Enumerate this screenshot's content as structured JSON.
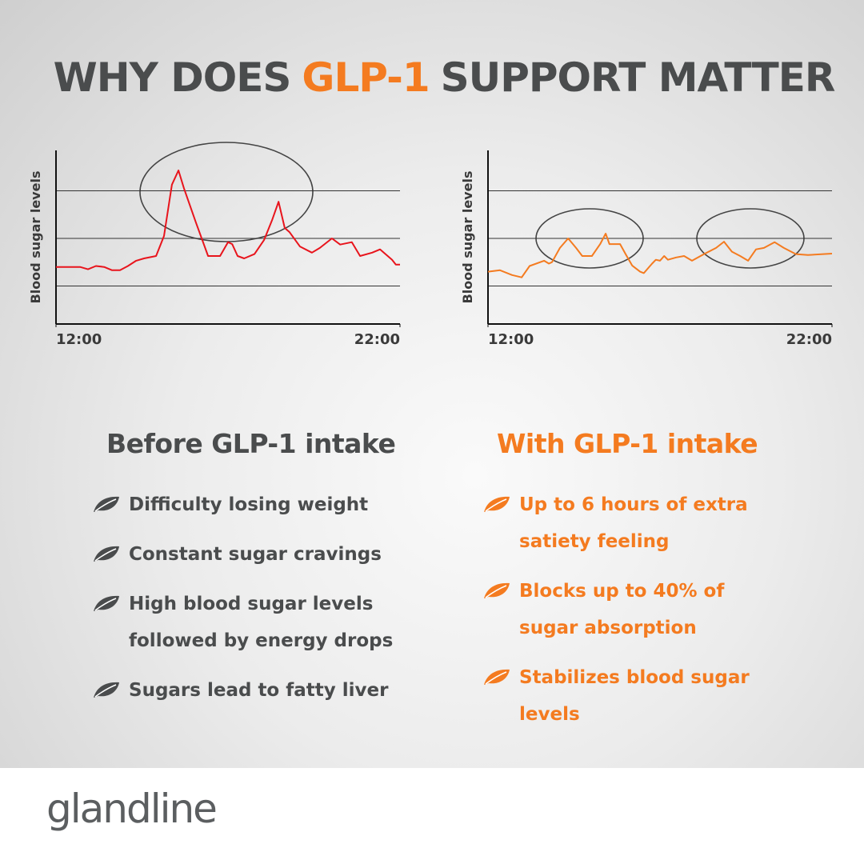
{
  "title_parts": [
    "WHY DOES",
    "GLP-1",
    "SUPPORT MATTER"
  ],
  "chart_data": [
    {
      "type": "line",
      "y_label": "Blood sugar levels",
      "x": [
        12,
        12.7,
        12.93,
        13.16,
        13.4,
        13.63,
        13.86,
        14.09,
        14.33,
        14.56,
        14.91,
        15.14,
        15.37,
        15.56,
        15.72,
        16.07,
        16.42,
        16.77,
        17.0,
        17.12,
        17.28,
        17.47,
        17.77,
        18.05,
        18.28,
        18.47,
        18.65,
        18.79,
        19.09,
        19.44,
        19.67,
        20.02,
        20.26,
        20.6,
        20.84,
        21.19,
        21.42,
        21.77,
        21.88,
        22
      ],
      "series": [
        {
          "color": "#e8141c",
          "values": [
            1.4,
            1.4,
            1.35,
            1.42,
            1.4,
            1.33,
            1.33,
            1.42,
            1.53,
            1.58,
            1.63,
            2.05,
            3.13,
            3.43,
            3.05,
            2.33,
            1.63,
            1.63,
            1.92,
            1.88,
            1.63,
            1.58,
            1.67,
            1.97,
            2.38,
            2.77,
            2.22,
            2.13,
            1.83,
            1.7,
            1.8,
            2.0,
            1.87,
            1.92,
            1.63,
            1.7,
            1.77,
            1.55,
            1.45,
            1.45
          ]
        }
      ],
      "xlim": [
        12,
        22
      ],
      "xticks": [
        {
          "value": 12,
          "label": "12:00"
        },
        {
          "value": 22,
          "label": "22:00"
        }
      ],
      "ylim": [
        0.2,
        3.85
      ],
      "ygrid": [
        1,
        2,
        3
      ]
    },
    {
      "type": "line",
      "y_label": "Blood sugar levels",
      "x": [
        12.0,
        12.35,
        12.7,
        12.98,
        13.21,
        13.63,
        13.77,
        13.86,
        14.09,
        14.33,
        14.56,
        14.74,
        15.02,
        15.26,
        15.42,
        15.53,
        15.84,
        16.0,
        16.19,
        16.42,
        16.53,
        16.77,
        16.88,
        17.0,
        17.12,
        17.23,
        17.47,
        17.7,
        17.93,
        18.28,
        18.63,
        18.86,
        19.09,
        19.33,
        19.56,
        19.79,
        20.02,
        20.33,
        20.6,
        20.95,
        21.3,
        22.0
      ],
      "series": [
        {
          "color": "#f47b20",
          "values": [
            1.3,
            1.33,
            1.23,
            1.18,
            1.42,
            1.53,
            1.47,
            1.5,
            1.8,
            2.0,
            1.8,
            1.63,
            1.63,
            1.88,
            2.1,
            1.88,
            1.88,
            1.67,
            1.43,
            1.3,
            1.27,
            1.47,
            1.55,
            1.53,
            1.63,
            1.55,
            1.6,
            1.63,
            1.53,
            1.67,
            1.8,
            1.93,
            1.72,
            1.63,
            1.53,
            1.77,
            1.8,
            1.92,
            1.8,
            1.67,
            1.65,
            1.68
          ]
        }
      ],
      "xlim": [
        12,
        22
      ],
      "xticks": [
        {
          "value": 12,
          "label": "12:00"
        },
        {
          "value": 22,
          "label": "22:00"
        }
      ],
      "ylim": [
        0.2,
        3.85
      ],
      "ygrid": [
        1,
        2,
        3
      ]
    }
  ],
  "before": {
    "heading": "Before GLP-1 intake",
    "items": [
      "Difficulty losing weight",
      "Constant sugar cravings",
      "High blood sugar levels followed by energy drops",
      "Sugars lead to fatty liver"
    ]
  },
  "with": {
    "heading": "With GLP-1 intake",
    "items": [
      "Up to 6 hours of extra satiety feeling",
      "Blocks up to 40% of sugar absorption",
      "Stabilizes blood sugar levels"
    ]
  },
  "brand": "glandline"
}
